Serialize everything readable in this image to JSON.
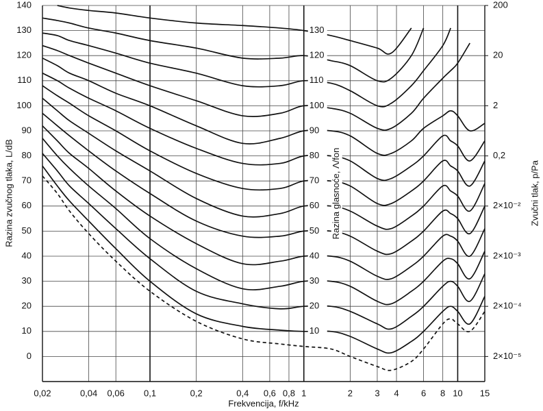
{
  "chart_data": {
    "type": "line",
    "xlabel": "Frekvencija, f/kHz",
    "ylabel": "Razina zvučnog tlaka, L/dB",
    "y2label": "Zvučni tlak, p/Pa",
    "series_label": "Razina glasnoće, Λ/fon",
    "xscale": "log",
    "y2scale": "log",
    "grid": true,
    "x": [
      0.02,
      0.025,
      0.03,
      0.04,
      0.06,
      0.1,
      0.2,
      0.4,
      0.7,
      1,
      1.5,
      2,
      3,
      3.7,
      5,
      6,
      8,
      9,
      10,
      12,
      15
    ],
    "series": [
      {
        "name": "10",
        "color": "#111111",
        "values": [
          76,
          68,
          62,
          54,
          43,
          30,
          17,
          12,
          10.5,
          10,
          10,
          8,
          3,
          1.5,
          6,
          10,
          18,
          20,
          18,
          13,
          24
        ]
      },
      {
        "name": "20",
        "color": "#111111",
        "values": [
          81,
          74,
          68,
          61,
          51,
          39,
          26,
          21,
          19,
          20,
          20,
          18,
          13,
          11,
          16,
          20,
          28,
          30,
          28,
          22,
          33
        ]
      },
      {
        "name": "30",
        "color": "#111111",
        "values": [
          87,
          80,
          75,
          68,
          59,
          47,
          35,
          27,
          28,
          30,
          30,
          28,
          22,
          21,
          26,
          30,
          38,
          39,
          37,
          31,
          42
        ]
      },
      {
        "name": "40",
        "color": "#111111",
        "values": [
          92,
          86,
          81,
          75,
          66,
          56,
          45,
          37,
          38,
          40,
          40,
          38,
          32,
          31,
          36,
          40,
          48,
          48,
          46,
          40,
          51
        ]
      },
      {
        "name": "50",
        "color": "#111111",
        "values": [
          97,
          92,
          88,
          82,
          74,
          65,
          54,
          48,
          48,
          50,
          50,
          48,
          42,
          41,
          46,
          50,
          58,
          57,
          55,
          49,
          60
        ]
      },
      {
        "name": "60",
        "color": "#111111",
        "values": [
          103,
          98,
          94,
          89,
          82,
          74,
          63,
          56,
          57,
          60,
          60,
          58,
          52,
          51,
          56,
          60,
          68,
          66,
          64,
          58,
          69
        ]
      },
      {
        "name": "70",
        "color": "#111111",
        "values": [
          108,
          104,
          101,
          96,
          90,
          82,
          73,
          67,
          67,
          70,
          70,
          68,
          61,
          61,
          66,
          70,
          78,
          76,
          74,
          68,
          78
        ]
      },
      {
        "name": "80",
        "color": "#111111",
        "values": [
          113,
          110,
          107,
          103,
          98,
          91,
          83,
          77,
          77,
          80,
          80,
          78,
          71,
          71,
          76,
          80,
          88,
          86,
          84,
          78,
          86
        ]
      },
      {
        "name": "90",
        "color": "#111111",
        "values": [
          119,
          116,
          113,
          110,
          105,
          100,
          92,
          85,
          87,
          90,
          90,
          88,
          81,
          81,
          86,
          91,
          96,
          98,
          96,
          90,
          93
        ]
      },
      {
        "name": "100",
        "color": "#111111",
        "values": [
          124,
          122,
          120,
          117,
          113,
          108,
          102,
          96,
          97,
          100,
          99,
          97,
          91,
          91,
          97,
          103,
          111,
          114,
          117,
          125,
          null
        ]
      },
      {
        "name": "110",
        "color": "#111111",
        "values": [
          129,
          128,
          126,
          124,
          121,
          117,
          113,
          108,
          108,
          110,
          109,
          106,
          100,
          101,
          108,
          114,
          124,
          131,
          null,
          null,
          null
        ]
      },
      {
        "name": "120",
        "color": "#111111",
        "values": [
          135,
          134,
          133,
          131,
          129,
          126,
          123,
          119,
          119,
          120,
          118,
          116,
          110,
          111,
          120,
          131,
          null,
          null,
          null,
          null,
          null
        ]
      },
      {
        "name": "130",
        "color": "#111111",
        "values": [
          null,
          140,
          139,
          138,
          137,
          135,
          133,
          132,
          131,
          130,
          128,
          126,
          123,
          121,
          131,
          null,
          null,
          null,
          null,
          null,
          null
        ]
      },
      {
        "style": "dashed",
        "color": "#111111",
        "values": [
          72,
          65,
          58,
          49,
          38,
          26,
          14,
          7,
          5,
          4,
          3,
          0,
          -4,
          -5.5,
          -2,
          3,
          13,
          15,
          13,
          10,
          18
        ]
      }
    ],
    "xlim": [
      0.02,
      15
    ],
    "xticks": [
      {
        "value": 0.02,
        "label": "0,02"
      },
      {
        "value": 0.04,
        "label": "0,04"
      },
      {
        "value": 0.06,
        "label": "0,06"
      },
      {
        "value": 0.1,
        "label": "0,1"
      },
      {
        "value": 0.2,
        "label": "0,2"
      },
      {
        "value": 0.4,
        "label": "0,4"
      },
      {
        "value": 0.6,
        "label": "0,6"
      },
      {
        "value": 0.8,
        "label": "0,8"
      },
      1,
      2,
      3,
      4,
      6,
      8,
      10,
      15
    ],
    "ylim": [
      -10,
      140
    ],
    "yticks": [
      0,
      10,
      20,
      30,
      40,
      50,
      60,
      70,
      80,
      90,
      100,
      110,
      120,
      130,
      140
    ],
    "y2lim": [
      6.3246e-06,
      200
    ],
    "y2ticks": [
      200,
      20,
      2,
      {
        "value": 0.2,
        "label": "0,2"
      },
      {
        "value": 0.02,
        "label": "2×10⁻²"
      },
      {
        "value": 0.002,
        "label": "2×10⁻³"
      },
      {
        "value": 0.0002,
        "label": "2×10⁻⁴"
      },
      {
        "value": 2e-05,
        "label": "2×10⁻⁵"
      }
    ]
  }
}
